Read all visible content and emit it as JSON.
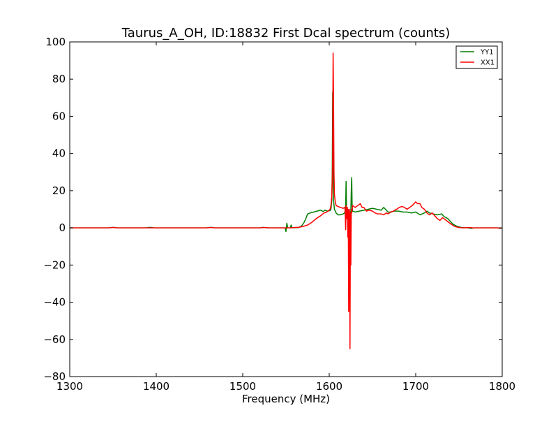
{
  "chart_data": {
    "type": "line",
    "title": "Taurus_A_OH, ID:18832 First Dcal spectrum (counts)",
    "xlabel": "Frequency (MHz)",
    "ylabel": "",
    "xlim": [
      1300,
      1800
    ],
    "ylim": [
      -80,
      100
    ],
    "xticks": [
      1300,
      1400,
      1500,
      1600,
      1700,
      1800
    ],
    "yticks": [
      -80,
      -60,
      -40,
      -20,
      0,
      20,
      40,
      60,
      80,
      100
    ],
    "grid": false,
    "legend": {
      "position": "top-right",
      "entries": [
        "YY1",
        "XX1"
      ]
    },
    "series": [
      {
        "name": "YY1",
        "color": "#007f00",
        "points": [
          [
            1300,
            0
          ],
          [
            1345,
            0
          ],
          [
            1350,
            0.3
          ],
          [
            1355,
            0
          ],
          [
            1388,
            0
          ],
          [
            1393,
            0.3
          ],
          [
            1398,
            0
          ],
          [
            1458,
            0
          ],
          [
            1463,
            0.3
          ],
          [
            1468,
            0
          ],
          [
            1520,
            0
          ],
          [
            1524,
            0.3
          ],
          [
            1528,
            0
          ],
          [
            1549,
            0
          ],
          [
            1550,
            -2
          ],
          [
            1551,
            2.5
          ],
          [
            1552,
            0
          ],
          [
            1555,
            0
          ],
          [
            1556,
            1.5
          ],
          [
            1557,
            0
          ],
          [
            1565,
            0.2
          ],
          [
            1568,
            1
          ],
          [
            1571,
            3
          ],
          [
            1573,
            5
          ],
          [
            1575,
            7.5
          ],
          [
            1578,
            8
          ],
          [
            1582,
            8.5
          ],
          [
            1586,
            9
          ],
          [
            1590,
            9.5
          ],
          [
            1593,
            8.8
          ],
          [
            1595,
            9.5
          ],
          [
            1598,
            9
          ],
          [
            1601,
            9.3
          ],
          [
            1602,
            10
          ],
          [
            1603,
            15
          ],
          [
            1603.5,
            30
          ],
          [
            1604,
            73
          ],
          [
            1604.5,
            35
          ],
          [
            1605,
            15
          ],
          [
            1606,
            10
          ],
          [
            1608,
            8
          ],
          [
            1610,
            7
          ],
          [
            1613,
            7
          ],
          [
            1616,
            7.5
          ],
          [
            1618,
            8
          ],
          [
            1619,
            12
          ],
          [
            1619.5,
            25
          ],
          [
            1620,
            10
          ],
          [
            1622,
            8.5
          ],
          [
            1624,
            8
          ],
          [
            1625,
            9
          ],
          [
            1625.5,
            20
          ],
          [
            1626,
            27
          ],
          [
            1626.5,
            12
          ],
          [
            1627,
            9
          ],
          [
            1630,
            8.5
          ],
          [
            1635,
            9
          ],
          [
            1640,
            9.5
          ],
          [
            1645,
            10
          ],
          [
            1650,
            10.5
          ],
          [
            1655,
            10
          ],
          [
            1660,
            9.5
          ],
          [
            1663,
            11
          ],
          [
            1665,
            10
          ],
          [
            1668,
            8.5
          ],
          [
            1672,
            8.5
          ],
          [
            1675,
            9
          ],
          [
            1680,
            9
          ],
          [
            1685,
            8.5
          ],
          [
            1690,
            8.5
          ],
          [
            1695,
            8
          ],
          [
            1700,
            8.5
          ],
          [
            1705,
            7
          ],
          [
            1710,
            8
          ],
          [
            1713,
            9
          ],
          [
            1716,
            8
          ],
          [
            1720,
            7.5
          ],
          [
            1725,
            7
          ],
          [
            1730,
            7.5
          ],
          [
            1733,
            6
          ],
          [
            1737,
            5
          ],
          [
            1740,
            3.5
          ],
          [
            1743,
            2
          ],
          [
            1747,
            1
          ],
          [
            1750,
            0.5
          ],
          [
            1753,
            0.2
          ],
          [
            1760,
            0
          ],
          [
            1764,
            -0.3
          ],
          [
            1768,
            0
          ],
          [
            1795,
            0
          ],
          [
            1797,
            -0.3
          ],
          [
            1800,
            0
          ]
        ]
      },
      {
        "name": "XX1",
        "color": "#ff0000",
        "points": [
          [
            1300,
            0
          ],
          [
            1345,
            0
          ],
          [
            1350,
            0.2
          ],
          [
            1355,
            0
          ],
          [
            1458,
            0
          ],
          [
            1463,
            0.2
          ],
          [
            1468,
            0
          ],
          [
            1520,
            0
          ],
          [
            1525,
            0.2
          ],
          [
            1530,
            0
          ],
          [
            1555,
            0
          ],
          [
            1560,
            0.2
          ],
          [
            1565,
            0.3
          ],
          [
            1570,
            0.8
          ],
          [
            1575,
            1.5
          ],
          [
            1580,
            3
          ],
          [
            1585,
            5
          ],
          [
            1590,
            6.5
          ],
          [
            1594,
            8
          ],
          [
            1597,
            8.5
          ],
          [
            1600,
            9.5
          ],
          [
            1601,
            10
          ],
          [
            1602,
            12
          ],
          [
            1603,
            17
          ],
          [
            1603.5,
            25
          ],
          [
            1604,
            40
          ],
          [
            1604.5,
            94
          ],
          [
            1605,
            70
          ],
          [
            1605.5,
            30
          ],
          [
            1606,
            18
          ],
          [
            1607,
            14
          ],
          [
            1608,
            12
          ],
          [
            1610,
            11.5
          ],
          [
            1613,
            11
          ],
          [
            1616,
            10.5
          ],
          [
            1618,
            11
          ],
          [
            1618.5,
            8
          ],
          [
            1619,
            -1
          ],
          [
            1619.5,
            12
          ],
          [
            1620,
            5
          ],
          [
            1621,
            11
          ],
          [
            1621.5,
            -5
          ],
          [
            1622,
            10
          ],
          [
            1622.5,
            -45
          ],
          [
            1623,
            5
          ],
          [
            1623.5,
            10
          ],
          [
            1624,
            -65
          ],
          [
            1624.5,
            8
          ],
          [
            1625,
            -20
          ],
          [
            1625.5,
            10
          ],
          [
            1626,
            8
          ],
          [
            1627,
            12
          ],
          [
            1630,
            11
          ],
          [
            1633,
            12
          ],
          [
            1636,
            13
          ],
          [
            1638,
            11
          ],
          [
            1640,
            11
          ],
          [
            1643,
            9
          ],
          [
            1646,
            9.5
          ],
          [
            1650,
            9
          ],
          [
            1653,
            8
          ],
          [
            1656,
            7.5
          ],
          [
            1660,
            7.5
          ],
          [
            1663,
            7
          ],
          [
            1666,
            8
          ],
          [
            1668,
            7.5
          ],
          [
            1671,
            8.5
          ],
          [
            1674,
            9
          ],
          [
            1678,
            10
          ],
          [
            1681,
            11
          ],
          [
            1684,
            11.5
          ],
          [
            1687,
            11
          ],
          [
            1690,
            10
          ],
          [
            1693,
            11
          ],
          [
            1696,
            12
          ],
          [
            1698,
            13
          ],
          [
            1700,
            14
          ],
          [
            1702,
            13
          ],
          [
            1705,
            13
          ],
          [
            1707,
            11
          ],
          [
            1710,
            10
          ],
          [
            1713,
            8
          ],
          [
            1716,
            7
          ],
          [
            1719,
            8
          ],
          [
            1722,
            6.5
          ],
          [
            1725,
            5
          ],
          [
            1728,
            4
          ],
          [
            1731,
            5.5
          ],
          [
            1734,
            4.5
          ],
          [
            1738,
            3
          ],
          [
            1741,
            2
          ],
          [
            1744,
            1
          ],
          [
            1747,
            0.5
          ],
          [
            1750,
            0.2
          ],
          [
            1755,
            0
          ],
          [
            1762,
            0.2
          ],
          [
            1766,
            0
          ],
          [
            1795,
            0
          ],
          [
            1797,
            -0.2
          ],
          [
            1800,
            0
          ]
        ]
      }
    ]
  }
}
